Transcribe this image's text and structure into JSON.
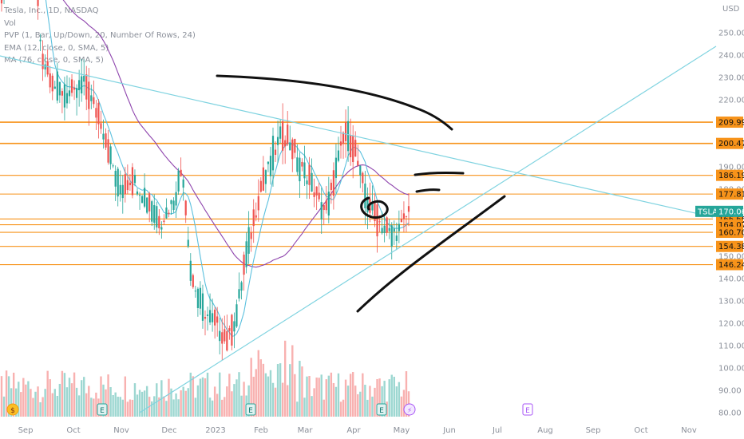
{
  "legend": {
    "title": "Tesla, Inc., 1D, NASDAQ",
    "vol": "Vol",
    "pvp": "PVP (1, Bar, Up/Down, 20, Number Of Rows, 24)",
    "ema": "EMA (12, close, 0, SMA, 5)",
    "ma": "MA (76, close, 0, SMA, 5)"
  },
  "chart_data": {
    "type": "candlestick",
    "currency_label": "USD",
    "ylim": [
      80,
      255
    ],
    "y_ticks": [
      "250.00",
      "240.00",
      "230.00",
      "220.00",
      "210.00",
      "200.00",
      "190.00",
      "180.00",
      "170.00",
      "160.00",
      "150.00",
      "140.00",
      "130.00",
      "120.00",
      "110.00",
      "100.00",
      "90.00",
      "80.00"
    ],
    "x_ticks": [
      "Sep",
      "Oct",
      "Nov",
      "Dec",
      "2023",
      "Feb",
      "Mar",
      "Apr",
      "May",
      "Jun",
      "Jul",
      "Aug",
      "Sep",
      "Oct",
      "Nov"
    ],
    "last_price": {
      "symbol": "TSLA",
      "value": "170.06",
      "color": "#26a69a"
    },
    "levels": [
      {
        "label": "209.99",
        "value": 209.99
      },
      {
        "label": "200.47",
        "value": 200.47
      },
      {
        "label": "186.19",
        "value": 186.19
      },
      {
        "label": "177.81",
        "value": 177.81
      },
      {
        "label": "166.66",
        "value": 166.66
      },
      {
        "label": "164.07",
        "value": 164.07
      },
      {
        "label": "160.70",
        "value": 160.7
      },
      {
        "label": "154.38",
        "value": 154.38
      },
      {
        "label": "146.24",
        "value": 146.24
      }
    ],
    "event_markers": [
      {
        "type": "dividend",
        "glyph": "$",
        "month": "Sep"
      },
      {
        "type": "earnings",
        "glyph": "E",
        "month": "Oct"
      },
      {
        "type": "earnings",
        "glyph": "E",
        "month": "Jan"
      },
      {
        "type": "earnings",
        "glyph": "E",
        "month": "Apr"
      },
      {
        "type": "split",
        "glyph": "⚡",
        "month": "May"
      },
      {
        "type": "earnings",
        "glyph": "E",
        "month": "Jul"
      }
    ],
    "colors": {
      "up": "#26a69a",
      "down": "#ef5350",
      "level": "#f7931a",
      "trend": "#7fd3e0",
      "ma": "#8e44ad",
      "ema": "#5bc0de"
    }
  }
}
